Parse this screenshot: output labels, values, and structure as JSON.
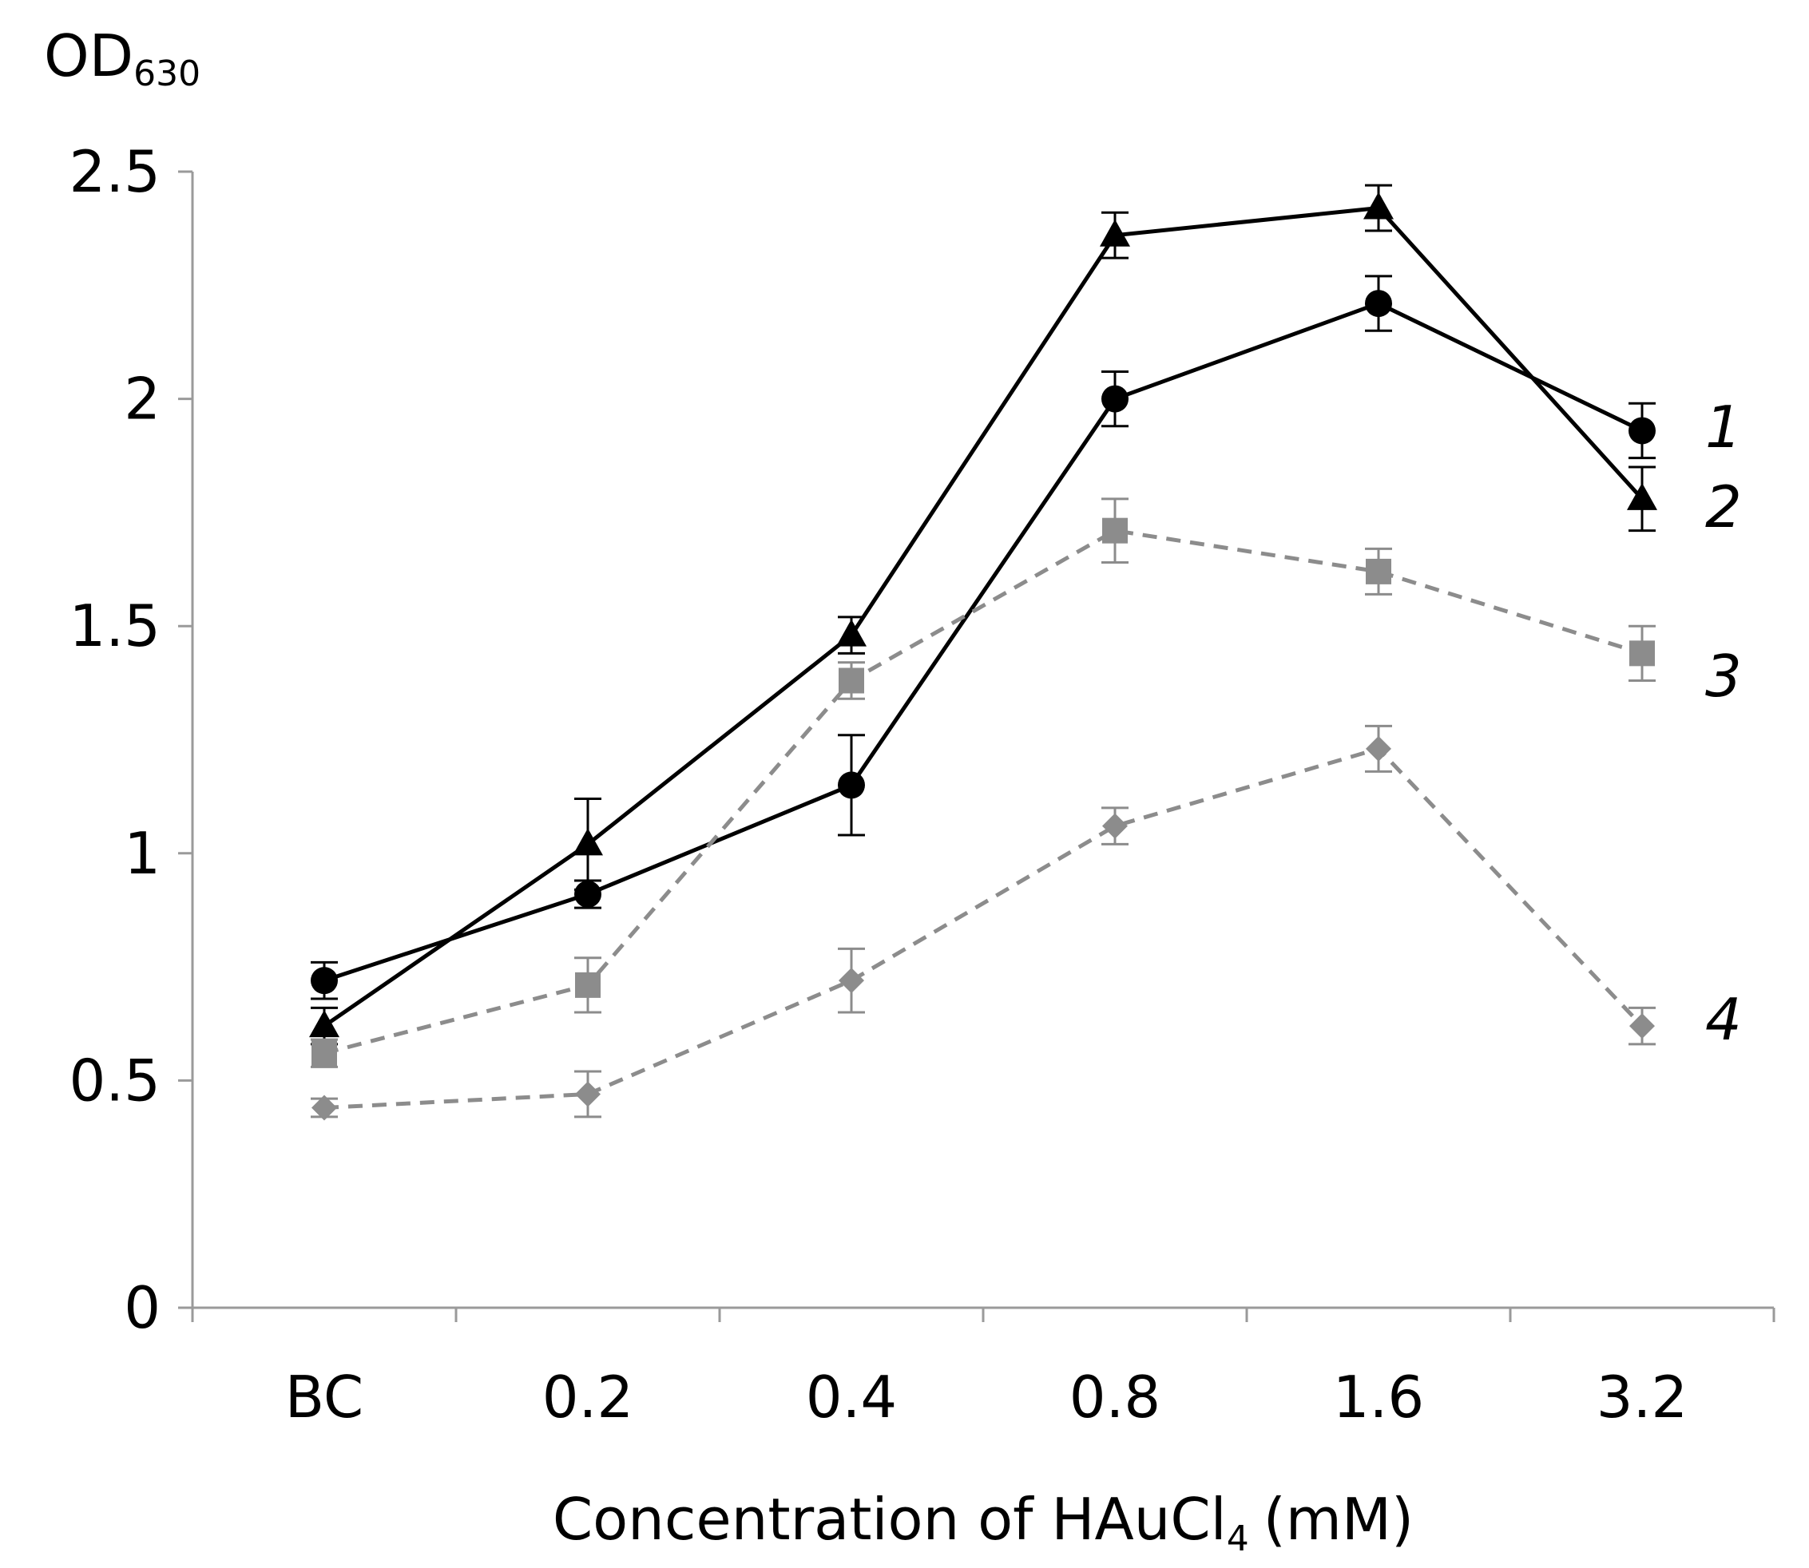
{
  "chart_data": {
    "type": "line",
    "title": "",
    "ylabel": "OD",
    "ylabel_sub": "630",
    "xlabel": "Concentration of HAuCl",
    "xlabel_sub": "4",
    "xlabel_unit": "(mM)",
    "categories": [
      "BC",
      "0.2",
      "0.4",
      "0.8",
      "1.6",
      "3.2"
    ],
    "ylim": [
      0,
      2.5
    ],
    "yticks": [
      0,
      0.5,
      1,
      1.5,
      2,
      2.5
    ],
    "ytick_labels": [
      "0",
      "0.5",
      "1",
      "1.5",
      "2",
      "2.5"
    ],
    "grid": false,
    "series": [
      {
        "name": "1",
        "marker": "circle",
        "color": "#000000",
        "line": "solid",
        "values": [
          0.72,
          0.91,
          1.15,
          2.0,
          2.21,
          1.93
        ],
        "errors": [
          0.04,
          0.03,
          0.11,
          0.06,
          0.06,
          0.06
        ]
      },
      {
        "name": "2",
        "marker": "triangle",
        "color": "#000000",
        "line": "solid",
        "values": [
          0.62,
          1.02,
          1.48,
          2.36,
          2.42,
          1.78
        ],
        "errors": [
          0.04,
          0.1,
          0.04,
          0.05,
          0.05,
          0.07
        ]
      },
      {
        "name": "3",
        "marker": "square",
        "color": "#8c8c8c",
        "line": "dashed",
        "values": [
          0.56,
          0.71,
          1.38,
          1.71,
          1.62,
          1.44
        ],
        "errors": [
          0.03,
          0.06,
          0.04,
          0.07,
          0.05,
          0.06
        ]
      },
      {
        "name": "4",
        "marker": "diamond",
        "color": "#8c8c8c",
        "line": "dashed",
        "values": [
          0.44,
          0.47,
          0.72,
          1.06,
          1.23,
          0.62
        ],
        "errors": [
          0.02,
          0.05,
          0.07,
          0.04,
          0.05,
          0.04
        ]
      }
    ],
    "series_labels": [
      "1",
      "2",
      "3",
      "4"
    ]
  }
}
